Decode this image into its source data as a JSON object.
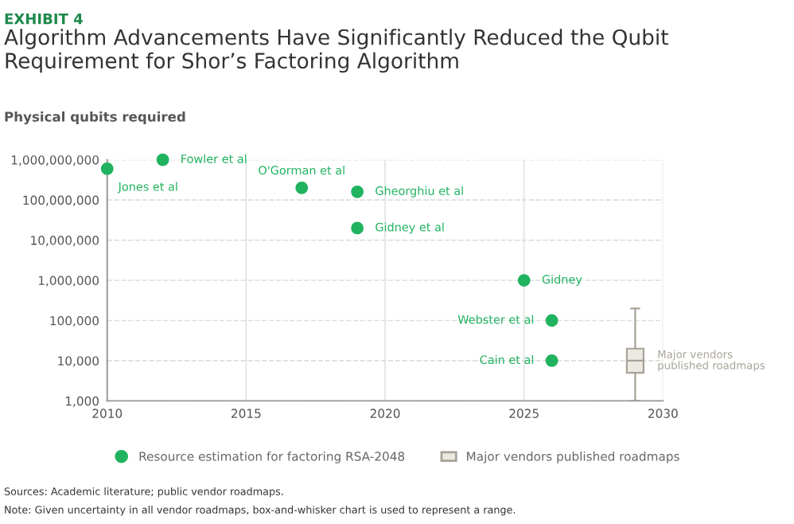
{
  "chart_data": {
    "type": "scatter",
    "subtitle": "EXHIBIT 4",
    "title": "Algorithm Advancements Have Significantly Reduced the Qubit Requirement for Shor’s Factoring Algorithm",
    "ylabel": "Physical qubits required",
    "series": [
      {
        "name": "Resource estimation for factoring RSA-2048",
        "color": "#21b35f",
        "x": [
          2010,
          2012,
          2017,
          2019,
          2019,
          2025,
          2026,
          2026
        ],
        "values": [
          600000000,
          1000000000,
          200000000,
          160000000,
          20000000,
          1000000,
          100000,
          10000
        ]
      },
      {
        "name": "Major vendors published roadmaps",
        "type": "box",
        "color": "#a8a398",
        "x": [
          2029
        ],
        "boxes": [
          {
            "low": 1000,
            "q1": 5000,
            "median": 10000,
            "q3": 20000,
            "high": 200000
          }
        ]
      }
    ],
    "annotations": [
      {
        "text": "Jones et al",
        "x": 2010,
        "y": 600000000
      },
      {
        "text": "Fowler et al",
        "x": 2012,
        "y": 1000000000
      },
      {
        "text": "O'Gorman et al",
        "x": 2017,
        "y": 200000000
      },
      {
        "text": "Gheorghiu et al",
        "x": 2019,
        "y": 160000000
      },
      {
        "text": "Gidney et al",
        "x": 2019,
        "y": 20000000
      },
      {
        "text": "Gidney",
        "x": 2025,
        "y": 1000000
      },
      {
        "text": "Webster et al",
        "x": 2026,
        "y": 100000
      },
      {
        "text": "Cain et al",
        "x": 2026,
        "y": 10000
      },
      {
        "text": "Major vendors\npublished roadmaps",
        "x": 2029,
        "y": 10000
      },
      "Sources: Academic literature; public vendor roadmaps.",
      "Note: Given uncertainty in all vendor roadmaps, box-and-whisker chart is used to represent a range."
    ],
    "log": "y",
    "xlim": [
      2010,
      2030
    ],
    "xticks": [
      2010,
      2015,
      2020,
      2025,
      2030
    ],
    "ylim": [
      1000,
      1000000000
    ],
    "yticks": [
      {
        "value": 1000,
        "label": "1,000"
      },
      {
        "value": 10000,
        "label": "10,000"
      },
      {
        "value": 100000,
        "label": "100,000"
      },
      {
        "value": 1000000,
        "label": "1,000,000"
      },
      {
        "value": 10000000,
        "label": "10,000,000"
      },
      {
        "value": 100000000,
        "label": "100,000,000"
      },
      {
        "value": 1000000000,
        "label": "1,000,000,000"
      }
    ],
    "grid": true,
    "legend": "bottom",
    "marker": "circle"
  }
}
